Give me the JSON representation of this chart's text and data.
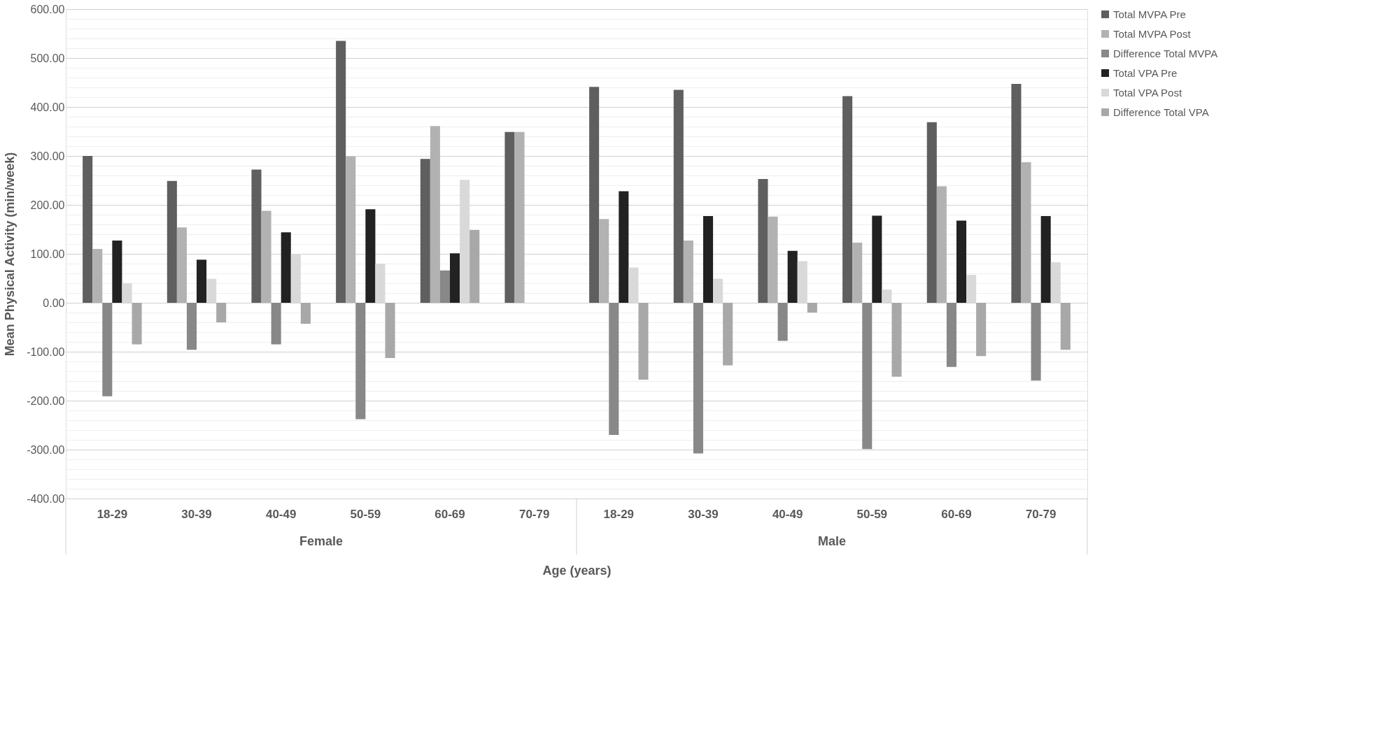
{
  "chart_data": {
    "type": "bar",
    "xlabel": "Age (years)",
    "ylabel": "Mean Physical Activity (min/week)",
    "categories": [
      "18-29",
      "30-39",
      "40-49",
      "50-59",
      "60-69",
      "70-79",
      "18-29",
      "30-39",
      "40-49",
      "50-59",
      "60-69",
      "70-79"
    ],
    "annotations": [
      "Female",
      "Male"
    ],
    "series": [
      {
        "name": "Total MVPA Pre",
        "color": "#5f5f5f",
        "values": [
          300,
          249,
          272,
          535,
          294,
          349,
          441,
          435,
          253,
          422,
          369,
          447
        ]
      },
      {
        "name": "Total MVPA Post",
        "color": "#b2b2b2",
        "values": [
          110,
          154,
          188,
          299,
          361,
          349,
          171,
          127,
          176,
          123,
          238,
          287
        ]
      },
      {
        "name": "Difference Total MVPA",
        "color": "#888888",
        "values": [
          -191,
          -96,
          -85,
          -238,
          66,
          0,
          -270,
          -308,
          -78,
          -299,
          -131,
          -159
        ]
      },
      {
        "name": "Total VPA Pre",
        "color": "#222222",
        "values": [
          127,
          88,
          144,
          191,
          101,
          null,
          228,
          177,
          106,
          178,
          168,
          177
        ]
      },
      {
        "name": "Total VPA Post",
        "color": "#d9d9d9",
        "values": [
          40,
          49,
          100,
          80,
          251,
          null,
          72,
          49,
          85,
          27,
          57,
          83
        ]
      },
      {
        "name": "Difference Total VPA",
        "color": "#a8a8a8",
        "values": [
          -85,
          -40,
          -43,
          -113,
          149,
          null,
          -157,
          -128,
          -20,
          -151,
          -109,
          -96
        ]
      }
    ],
    "ylim": [
      -400,
      600
    ],
    "yticks": [
      {
        "value": -400,
        "label": "-400.00"
      },
      {
        "value": -380,
        "label": null
      },
      {
        "value": -360,
        "label": null
      },
      {
        "value": -340,
        "label": null
      },
      {
        "value": -320,
        "label": null
      },
      {
        "value": -300,
        "label": "-300.00"
      },
      {
        "value": -280,
        "label": null
      },
      {
        "value": -260,
        "label": null
      },
      {
        "value": -240,
        "label": null
      },
      {
        "value": -220,
        "label": null
      },
      {
        "value": -200,
        "label": "-200.00"
      },
      {
        "value": -180,
        "label": null
      },
      {
        "value": -160,
        "label": null
      },
      {
        "value": -140,
        "label": null
      },
      {
        "value": -120,
        "label": null
      },
      {
        "value": -100,
        "label": "-100.00"
      },
      {
        "value": -80,
        "label": null
      },
      {
        "value": -60,
        "label": null
      },
      {
        "value": -40,
        "label": null
      },
      {
        "value": -20,
        "label": null
      },
      {
        "value": 0,
        "label": "0.00"
      },
      {
        "value": 20,
        "label": null
      },
      {
        "value": 40,
        "label": null
      },
      {
        "value": 60,
        "label": null
      },
      {
        "value": 80,
        "label": null
      },
      {
        "value": 100,
        "label": "100.00"
      },
      {
        "value": 120,
        "label": null
      },
      {
        "value": 140,
        "label": null
      },
      {
        "value": 160,
        "label": null
      },
      {
        "value": 180,
        "label": null
      },
      {
        "value": 200,
        "label": "200.00"
      },
      {
        "value": 220,
        "label": null
      },
      {
        "value": 240,
        "label": null
      },
      {
        "value": 260,
        "label": null
      },
      {
        "value": 280,
        "label": null
      },
      {
        "value": 300,
        "label": "300.00"
      },
      {
        "value": 320,
        "label": null
      },
      {
        "value": 340,
        "label": null
      },
      {
        "value": 360,
        "label": null
      },
      {
        "value": 380,
        "label": null
      },
      {
        "value": 400,
        "label": "400.00"
      },
      {
        "value": 420,
        "label": null
      },
      {
        "value": 440,
        "label": null
      },
      {
        "value": 460,
        "label": null
      },
      {
        "value": 480,
        "label": null
      },
      {
        "value": 500,
        "label": "500.00"
      },
      {
        "value": 520,
        "label": null
      },
      {
        "value": 540,
        "label": null
      },
      {
        "value": 560,
        "label": null
      },
      {
        "value": 580,
        "label": null
      },
      {
        "value": 600,
        "label": "600.00"
      }
    ],
    "grid": "y",
    "legend": "right"
  }
}
